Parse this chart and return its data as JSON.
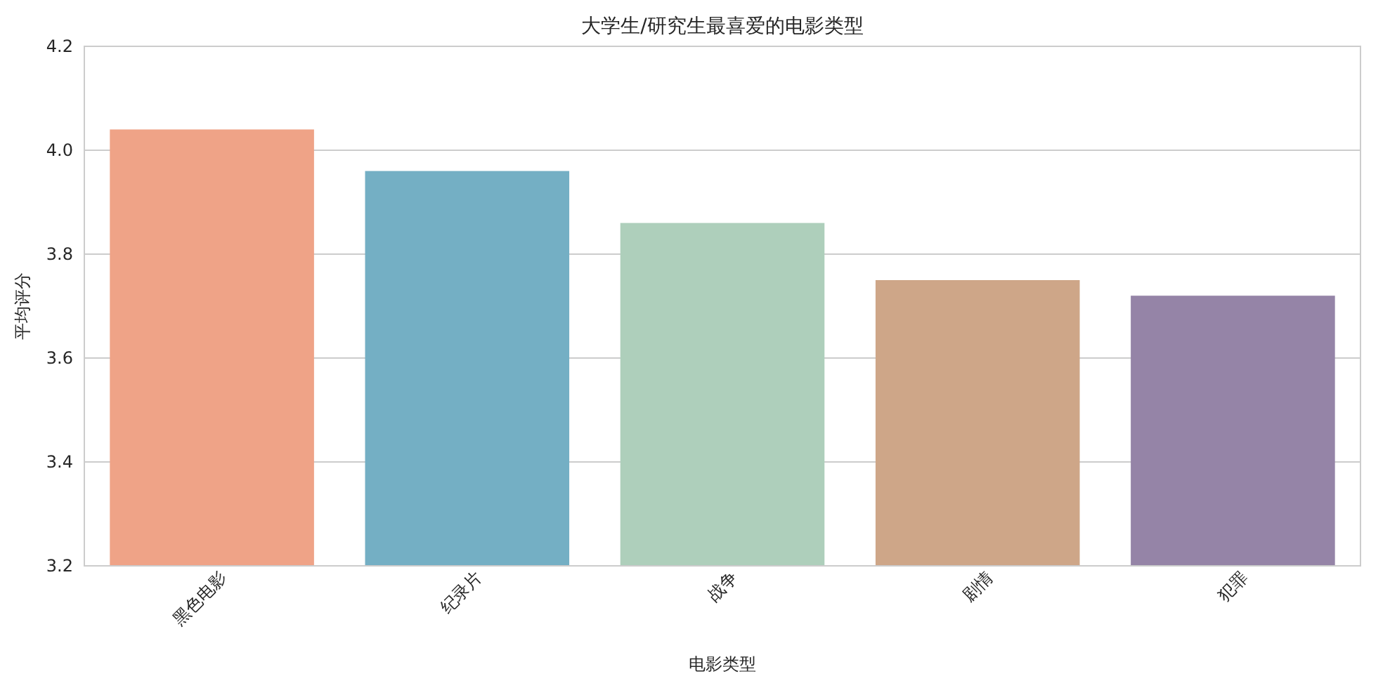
{
  "chart_data": {
    "type": "bar",
    "title": "大学生/研究生最喜爱的电影类型",
    "xlabel": "电影类型",
    "ylabel": "平均评分",
    "categories": [
      "黑色电影",
      "纪录片",
      "战争",
      "剧情",
      "犯罪"
    ],
    "values": [
      4.04,
      3.96,
      3.86,
      3.75,
      3.72
    ],
    "colors": [
      "#efa387",
      "#74afc4",
      "#aecfbb",
      "#cea688",
      "#9584a7"
    ],
    "ylim": [
      3.2,
      4.2
    ],
    "yticks": [
      3.2,
      3.4,
      3.6,
      3.8,
      {
        "value": 4,
        "label": "4.0"
      },
      4.2
    ],
    "grid": "y"
  }
}
